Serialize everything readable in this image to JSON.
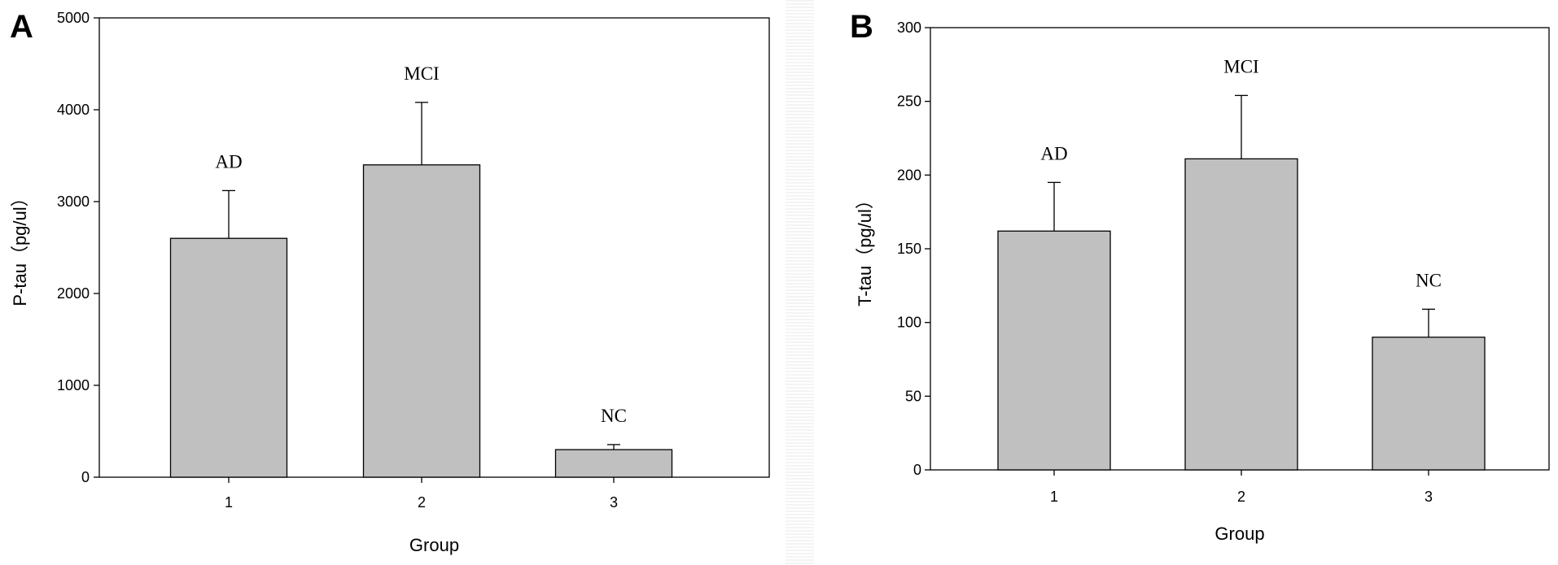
{
  "colors": {
    "bar_fill": "#c0c0c0",
    "bar_stroke": "#000000",
    "axis": "#000000",
    "background": "#ffffff"
  },
  "chart_data": [
    {
      "type": "bar",
      "panel_label": "A",
      "categories": [
        "1",
        "2",
        "3"
      ],
      "values": [
        2600,
        3400,
        300
      ],
      "error_upper": [
        3120,
        4080,
        355
      ],
      "annotations": [
        "AD",
        "MCI",
        "NC"
      ],
      "xlabel": "Group",
      "ylabel": "P-tau（pg/ul）",
      "ylim": [
        0,
        5000
      ],
      "yticks": [
        0,
        1000,
        2000,
        3000,
        4000,
        5000
      ],
      "grid": false
    },
    {
      "type": "bar",
      "panel_label": "B",
      "categories": [
        "1",
        "2",
        "3"
      ],
      "values": [
        162,
        211,
        90
      ],
      "error_upper": [
        195,
        254,
        109
      ],
      "annotations": [
        "AD",
        "MCI",
        "NC"
      ],
      "xlabel": "Group",
      "ylabel": "T-tau（pg/ul）",
      "ylim": [
        0,
        300
      ],
      "yticks": [
        0,
        50,
        100,
        150,
        200,
        250,
        300
      ],
      "grid": false
    }
  ]
}
